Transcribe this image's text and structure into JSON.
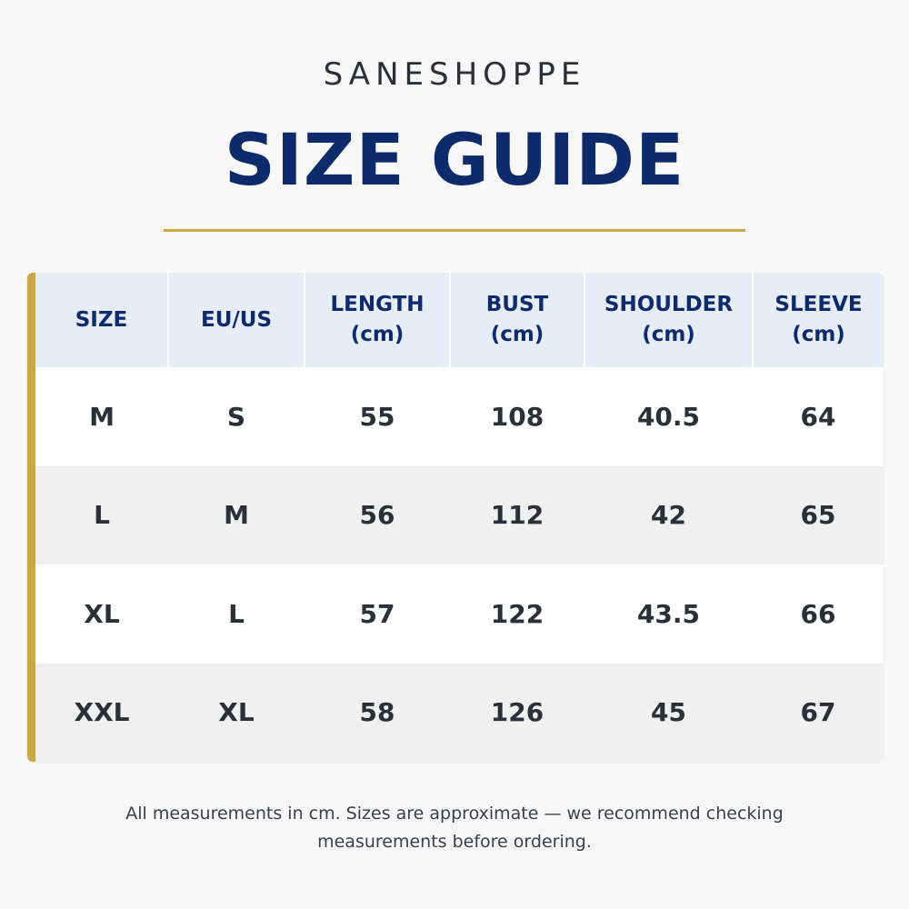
{
  "brand": "SANESHOPPE",
  "title": "SIZE GUIDE",
  "colors": {
    "title": "#0d2a6b",
    "accent_gold": "#c9a84a",
    "header_bg": "#e7edf6",
    "row_alt_bg": "#f0f0f0"
  },
  "table": {
    "headers": [
      {
        "label": "SIZE",
        "unit": ""
      },
      {
        "label": "EU/US",
        "unit": ""
      },
      {
        "label": "LENGTH",
        "unit": "(cm)"
      },
      {
        "label": "BUST",
        "unit": "(cm)"
      },
      {
        "label": "SHOULDER",
        "unit": "(cm)"
      },
      {
        "label": "SLEEVE",
        "unit": "(cm)"
      }
    ],
    "rows": [
      [
        "M",
        "S",
        "55",
        "108",
        "40.5",
        "64"
      ],
      [
        "L",
        "M",
        "56",
        "112",
        "42",
        "65"
      ],
      [
        "XL",
        "L",
        "57",
        "122",
        "43.5",
        "66"
      ],
      [
        "XXL",
        "XL",
        "58",
        "126",
        "45",
        "67"
      ]
    ]
  },
  "note": "All measurements in cm. Sizes are approximate — we recommend checking measurements before ordering."
}
